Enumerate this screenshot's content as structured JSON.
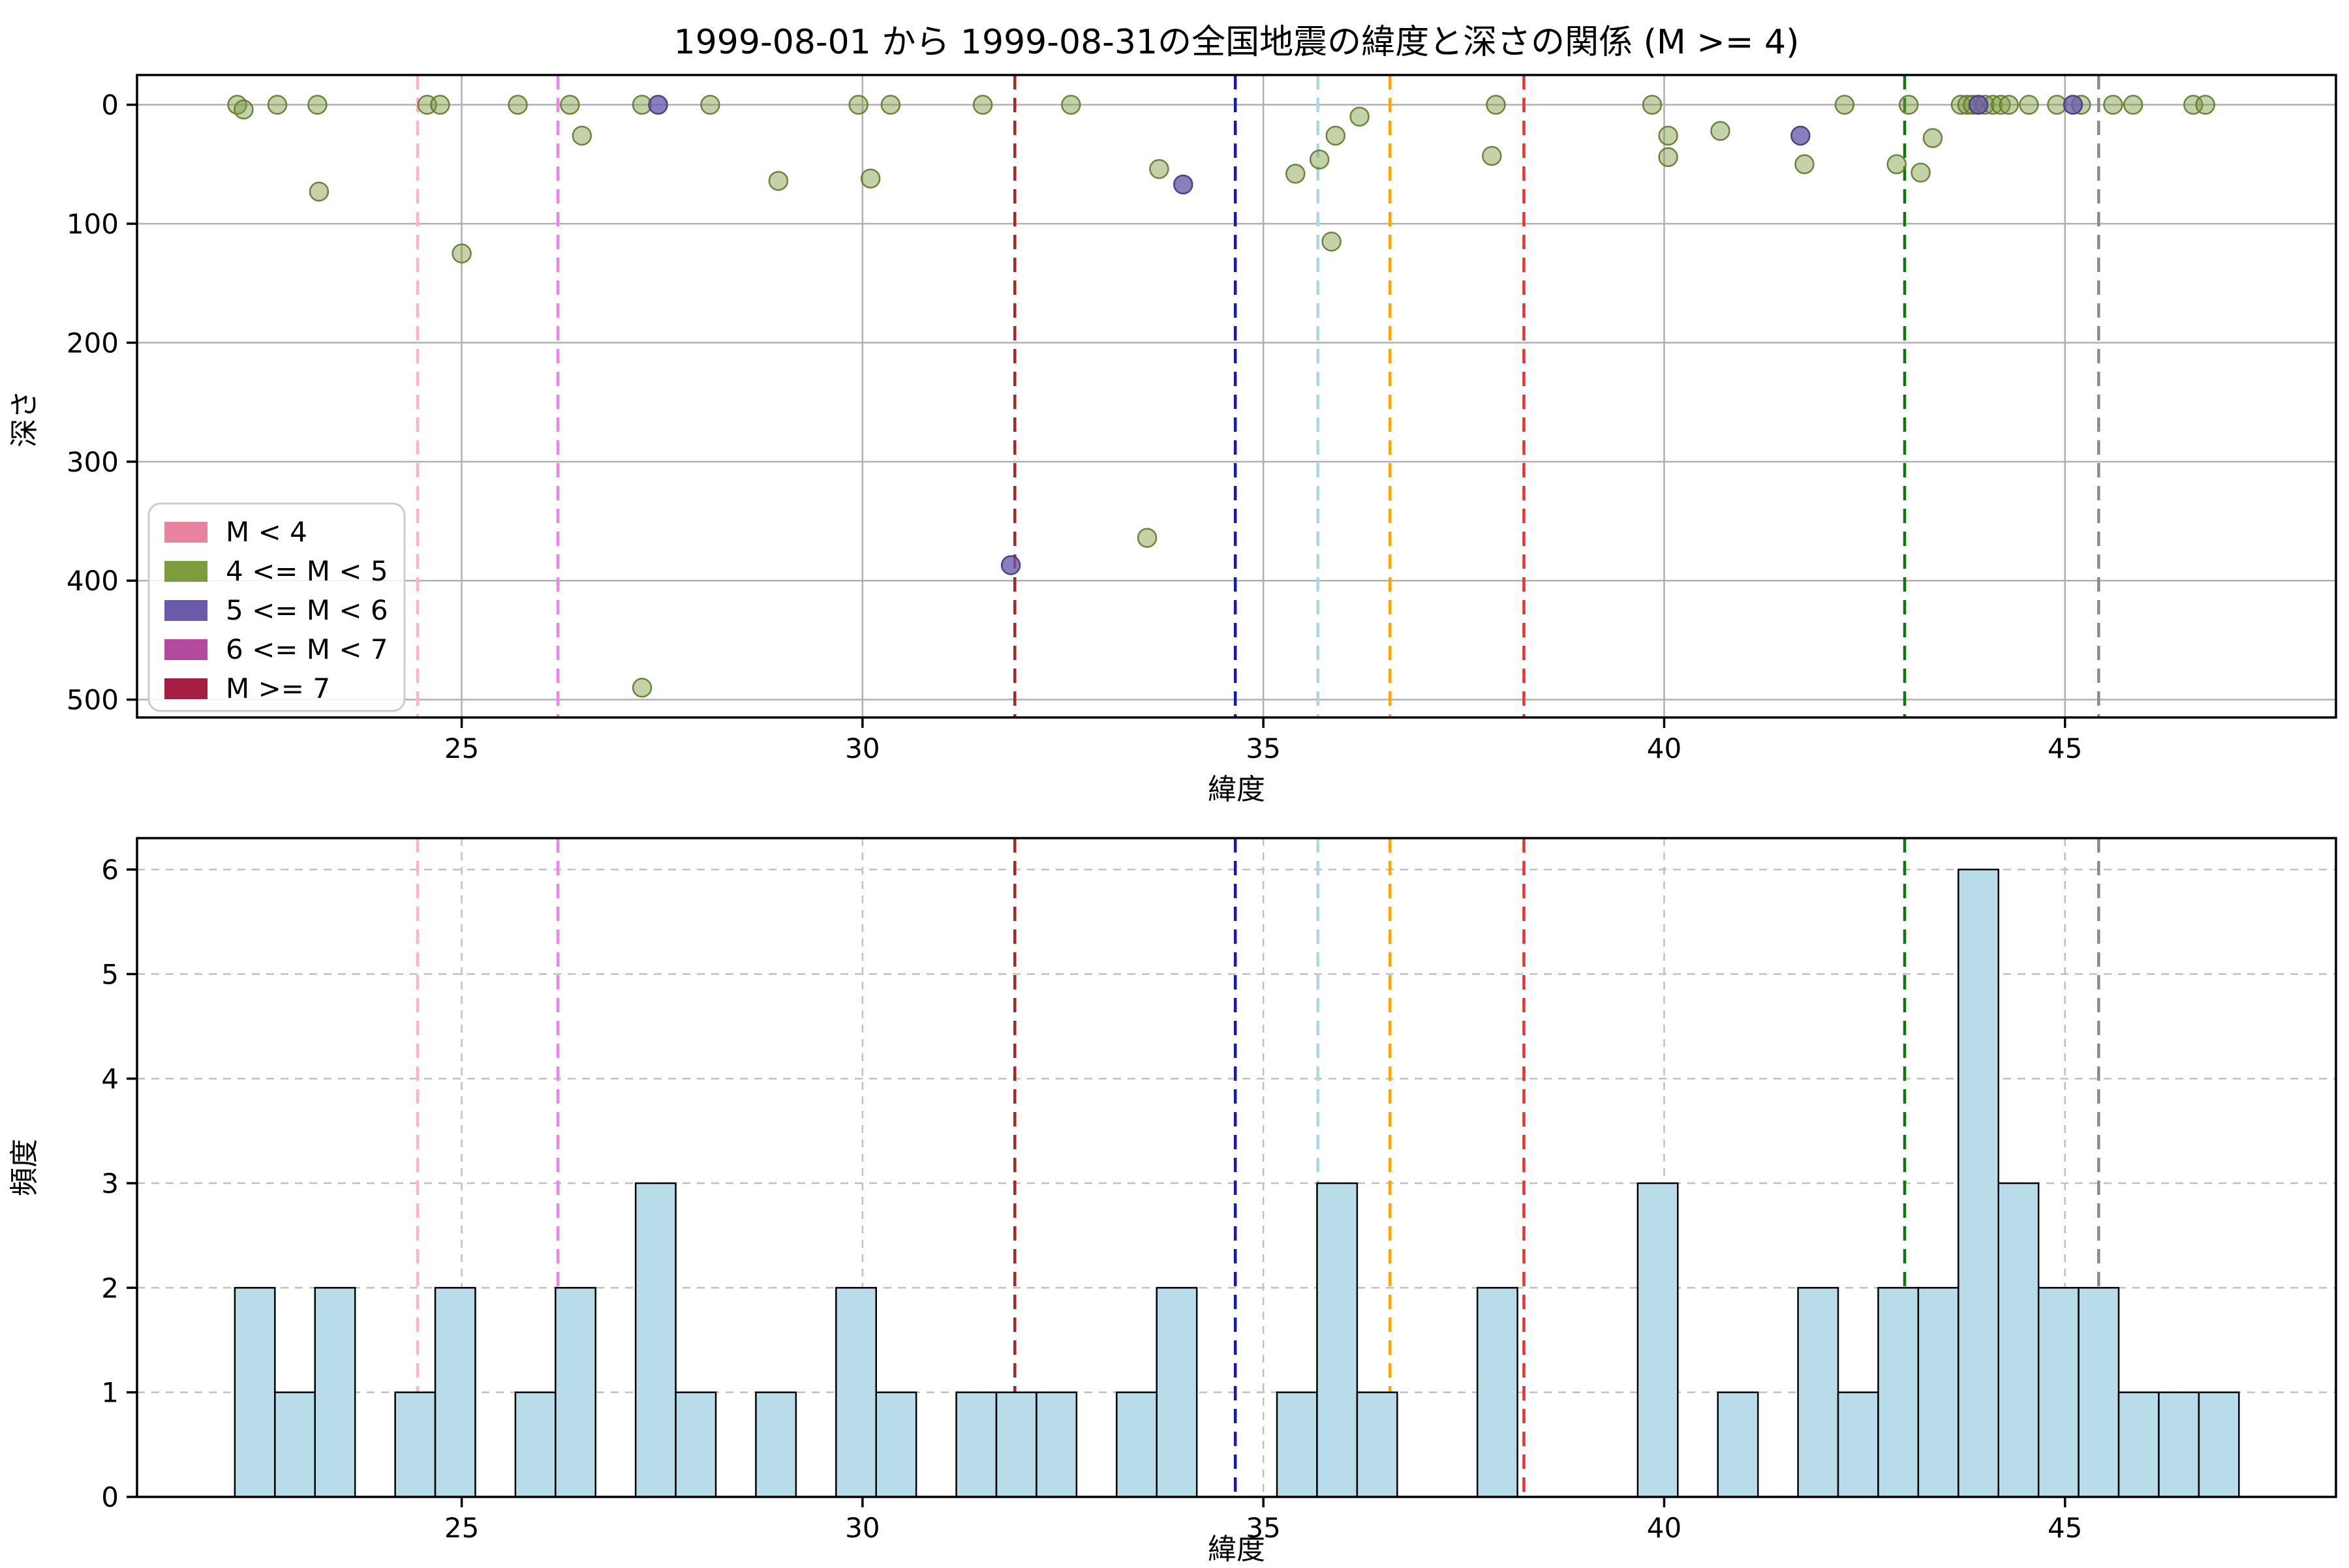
{
  "figure": {
    "background": "#ffffff",
    "plot_area_color": "#ffffff",
    "grid_color_top": "#b0b0b0",
    "grid_color_bottom": "#c0c0c0",
    "spine_color": "#000000",
    "tick_color": "#000000"
  },
  "chart_data": {
    "charts": [
      {
        "type": "scatter",
        "title": "1999-08-01 から 1999-08-31の全国地震の緯度と深さの関係 (M >= 4)",
        "xlabel": "緯度",
        "ylabel": "深さ",
        "xlim": [
          20.95,
          48.38
        ],
        "ylim_depth": [
          -25,
          515
        ],
        "y_inverted": true,
        "grid": "solid",
        "xticks": [
          25,
          30,
          35,
          40,
          45
        ],
        "yticks": [
          0,
          100,
          200,
          300,
          400,
          500
        ],
        "legend": {
          "position": "lower left",
          "entries": [
            {
              "label": "M < 4",
              "color": "#e8849f"
            },
            {
              "label": "4 <= M < 5",
              "color": "#7d9c3d"
            },
            {
              "label": "5 <= M < 6",
              "color": "#6a5aa8"
            },
            {
              "label": "6 <= M < 7",
              "color": "#b44a9e"
            },
            {
              "label": "M >= 7",
              "color": "#a71e45"
            }
          ]
        },
        "vlines": [
          {
            "name": "pink-line",
            "lat": 24.45,
            "color": "#ffb3c6"
          },
          {
            "name": "violet-line",
            "lat": 26.2,
            "color": "#ee82ee"
          },
          {
            "name": "firebrick-line",
            "lat": 31.9,
            "color": "#b22222"
          },
          {
            "name": "blue-line",
            "lat": 34.65,
            "color": "#1515cc"
          },
          {
            "name": "skyblue-line",
            "lat": 35.68,
            "color": "#a6d9ec"
          },
          {
            "name": "orange-line",
            "lat": 36.58,
            "color": "#ffa500"
          },
          {
            "name": "red-line",
            "lat": 38.25,
            "color": "#ff2a2a"
          },
          {
            "name": "green-line",
            "lat": 43.0,
            "color": "#0a7a0a"
          },
          {
            "name": "gray-line",
            "lat": 45.42,
            "color": "#8a8a8a"
          }
        ],
        "series": [
          {
            "name": "4 <= M < 5",
            "fill": "rgba(125,156,61,0.45)",
            "edge": "rgba(96,120,45,0.9)",
            "points": [
              [
                22.2,
                0
              ],
              [
                22.28,
                4
              ],
              [
                22.7,
                0
              ],
              [
                23.2,
                0
              ],
              [
                23.22,
                73
              ],
              [
                24.57,
                0
              ],
              [
                24.73,
                0
              ],
              [
                25.0,
                125
              ],
              [
                25.7,
                0
              ],
              [
                26.35,
                0
              ],
              [
                26.5,
                26
              ],
              [
                27.25,
                0
              ],
              [
                27.25,
                490
              ],
              [
                28.1,
                0
              ],
              [
                28.95,
                64
              ],
              [
                29.95,
                0
              ],
              [
                30.1,
                62
              ],
              [
                30.35,
                0
              ],
              [
                31.5,
                0
              ],
              [
                32.6,
                0
              ],
              [
                33.55,
                364
              ],
              [
                33.7,
                54
              ],
              [
                35.4,
                58
              ],
              [
                35.7,
                46
              ],
              [
                35.85,
                115
              ],
              [
                35.9,
                26
              ],
              [
                36.2,
                10
              ],
              [
                37.85,
                43
              ],
              [
                37.9,
                0
              ],
              [
                39.85,
                0
              ],
              [
                40.05,
                26
              ],
              [
                40.05,
                44
              ],
              [
                40.7,
                22
              ],
              [
                41.75,
                50
              ],
              [
                42.25,
                0
              ],
              [
                42.9,
                50
              ],
              [
                43.05,
                0
              ],
              [
                43.2,
                57
              ],
              [
                43.35,
                28
              ],
              [
                43.7,
                0
              ],
              [
                43.78,
                0
              ],
              [
                43.85,
                0
              ],
              [
                44.0,
                0
              ],
              [
                44.1,
                0
              ],
              [
                44.2,
                0
              ],
              [
                44.3,
                0
              ],
              [
                44.55,
                0
              ],
              [
                44.9,
                0
              ],
              [
                45.2,
                0
              ],
              [
                45.6,
                0
              ],
              [
                45.85,
                0
              ],
              [
                46.6,
                0
              ],
              [
                46.75,
                0
              ]
            ]
          },
          {
            "name": "5 <= M < 6",
            "fill": "rgba(106,90,170,0.78)",
            "edge": "rgba(72,58,132,0.95)",
            "points": [
              [
                27.45,
                0
              ],
              [
                31.85,
                387
              ],
              [
                34.0,
                67
              ],
              [
                41.7,
                26
              ],
              [
                43.92,
                0
              ],
              [
                45.1,
                0
              ]
            ]
          }
        ]
      },
      {
        "type": "histogram",
        "xlabel": "緯度",
        "ylabel": "頻度",
        "xlim": [
          20.95,
          48.38
        ],
        "ylim": [
          0,
          6.3
        ],
        "grid": "dashed",
        "xticks": [
          25,
          30,
          35,
          40,
          45
        ],
        "yticks": [
          0,
          1,
          2,
          3,
          4,
          5,
          6
        ],
        "bar_color": "#b9dcea",
        "bar_edge": "#000000",
        "bin_start": 22.17,
        "bin_width": 0.5,
        "counts": [
          2,
          1,
          2,
          0,
          1,
          2,
          0,
          1,
          2,
          0,
          3,
          1,
          0,
          1,
          0,
          2,
          1,
          0,
          1,
          1,
          1,
          0,
          1,
          2,
          0,
          0,
          1,
          3,
          1,
          0,
          0,
          2,
          0,
          0,
          0,
          3,
          0,
          1,
          0,
          2,
          1,
          2,
          2,
          6,
          3,
          2,
          2,
          1,
          1,
          1
        ]
      }
    ]
  }
}
